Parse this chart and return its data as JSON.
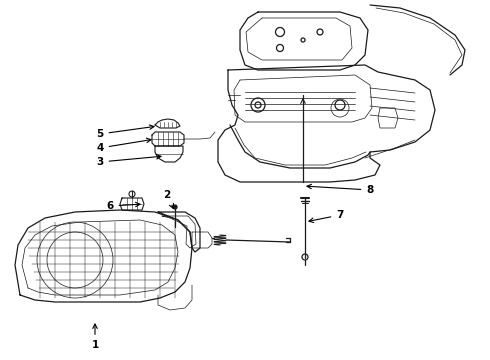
{
  "background_color": "#ffffff",
  "line_color": "#1a1a1a",
  "label_color": "#000000",
  "arrow_color": "#000000",
  "fig_width": 4.9,
  "fig_height": 3.6,
  "dpi": 100
}
